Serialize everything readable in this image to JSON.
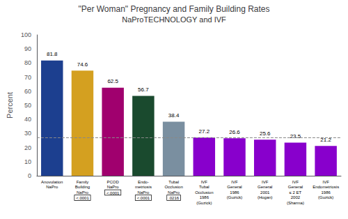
{
  "chart_data": {
    "type": "bar",
    "title": "\"Per Woman\" Pregnancy and Family Building Rates",
    "subtitle": "NaProTECHNOLOGY and IVF",
    "categories": [
      "Anovulation\nNaPro",
      "Family\nBuilding\nNaPro",
      "PCOD\nNaPro",
      "Endo-\nmetriosis\nNaPro",
      "Tubal\nOcclusion\nNaPro",
      "IVF\nTubal\nOcclusion\n1986\n(Guzick)",
      "IVF\nGeneral\n1986\n(Guzick)",
      "IVF\nGeneral\n2001\n(Hogan)",
      "IVF\nGeneral\n≤ 2 ET\n2002\n(Sharma)",
      "IVF\nEndometriosis\n1986\n(Guzick)"
    ],
    "values": [
      81.8,
      74.6,
      62.5,
      56.7,
      38.4,
      27.2,
      26.6,
      25.6,
      23.5,
      21.2
    ],
    "colors": [
      "#1c3f8f",
      "#d4a020",
      "#a0006e",
      "#1a4a2e",
      "#7a8fa0",
      "#8800cc",
      "#8800cc",
      "#8800cc",
      "#8800cc",
      "#8800cc"
    ],
    "annotations": [
      null,
      "<.0001",
      "<.0001",
      "<.0001",
      ".0216",
      null,
      null,
      null,
      null,
      null
    ],
    "reference_line": 27.2,
    "ylabel": "Percent",
    "ylim": [
      0,
      100
    ],
    "yticks": [
      0,
      10,
      20,
      30,
      40,
      50,
      60,
      70,
      80,
      90,
      100
    ],
    "data_labels": true,
    "grid": false
  }
}
